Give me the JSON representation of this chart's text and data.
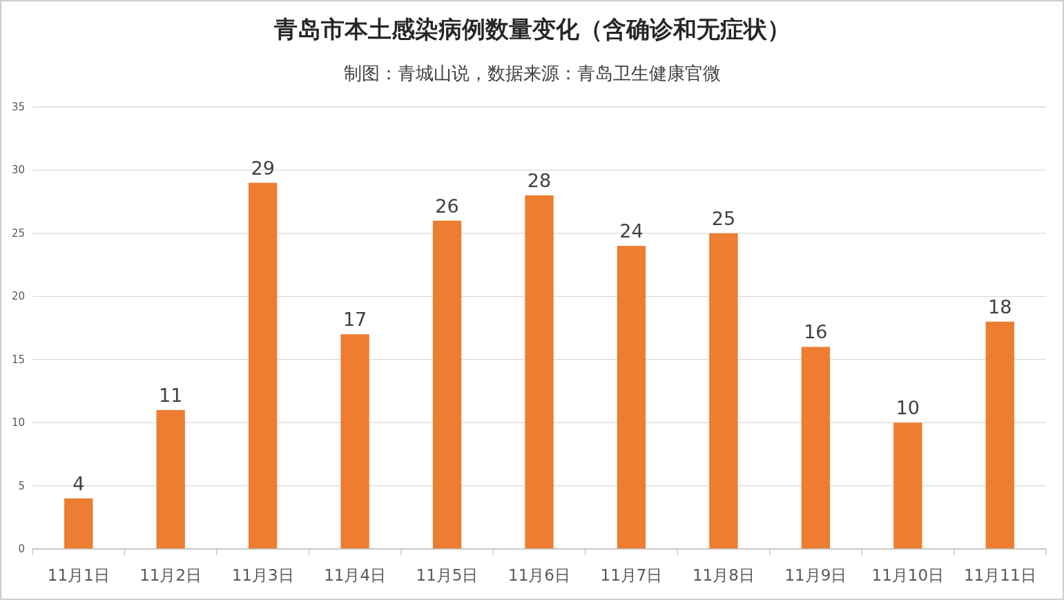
{
  "chart_data": {
    "type": "bar",
    "title": "青岛市本土感染病例数量变化（含确诊和无症状）",
    "subtitle": "制图：青城山说，数据来源：青岛卫生健康官微",
    "categories": [
      "11月1日",
      "11月2日",
      "11月3日",
      "11月4日",
      "11月5日",
      "11月6日",
      "11月7日",
      "11月8日",
      "11月9日",
      "11月10日",
      "11月11日"
    ],
    "values": [
      4,
      11,
      29,
      17,
      26,
      28,
      24,
      25,
      16,
      10,
      18
    ],
    "color": "#ed7d31",
    "ylim": [
      0,
      35
    ],
    "yticks": [
      0,
      5,
      10,
      15,
      20,
      25,
      30,
      35
    ],
    "grid": "y",
    "data_labels": true
  }
}
